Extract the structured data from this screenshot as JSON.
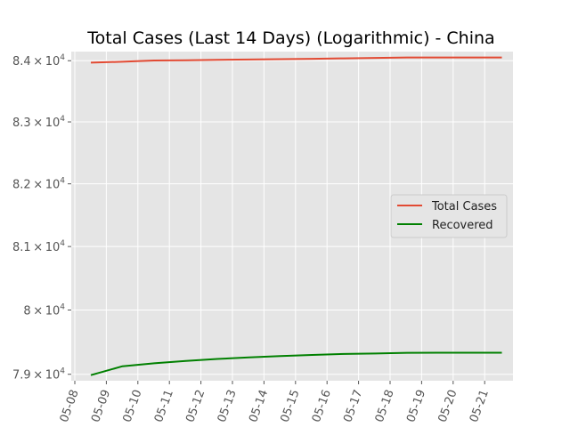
{
  "chart_data": {
    "type": "line",
    "title": "Total Cases (Last 14 Days) (Logarithmic) - China",
    "xlabel": "",
    "ylabel": "",
    "yscale": "log",
    "grid": true,
    "legend_position": "center-right",
    "x_ticks": [
      "05-08",
      "05-09",
      "05-10",
      "05-11",
      "05-12",
      "05-13",
      "05-14",
      "05-15",
      "05-16",
      "05-17",
      "05-18",
      "05-19",
      "05-20",
      "05-21"
    ],
    "y_ticks": [
      {
        "value": 79000,
        "mantissa": "7.9",
        "exponent": "4"
      },
      {
        "value": 80000,
        "mantissa": "8",
        "exponent": "4"
      },
      {
        "value": 81000,
        "mantissa": "8.1",
        "exponent": "4"
      },
      {
        "value": 82000,
        "mantissa": "8.2",
        "exponent": "4"
      },
      {
        "value": 83000,
        "mantissa": "8.3",
        "exponent": "4"
      },
      {
        "value": 84000,
        "mantissa": "8.4",
        "exponent": "4"
      }
    ],
    "ylim": [
      78900,
      84150
    ],
    "x": [
      "05-08",
      "05-09",
      "05-10",
      "05-11",
      "05-12",
      "05-13",
      "05-14",
      "05-15",
      "05-16",
      "05-17",
      "05-18",
      "05-19",
      "05-20",
      "05-21"
    ],
    "series": [
      {
        "name": "Total Cases",
        "color": "#e24a33",
        "values": [
          83968,
          83983,
          84004,
          84006,
          84014,
          84020,
          84025,
          84032,
          84038,
          84046,
          84054,
          84054,
          84054,
          84054
        ]
      },
      {
        "name": "Recovered",
        "color": "#008000",
        "values": [
          78986,
          79124,
          79170,
          79206,
          79237,
          79262,
          79281,
          79299,
          79314,
          79322,
          79333,
          79334,
          79334,
          79334
        ]
      }
    ],
    "tick_symbols": {
      "times": "×",
      "base": "10"
    }
  }
}
